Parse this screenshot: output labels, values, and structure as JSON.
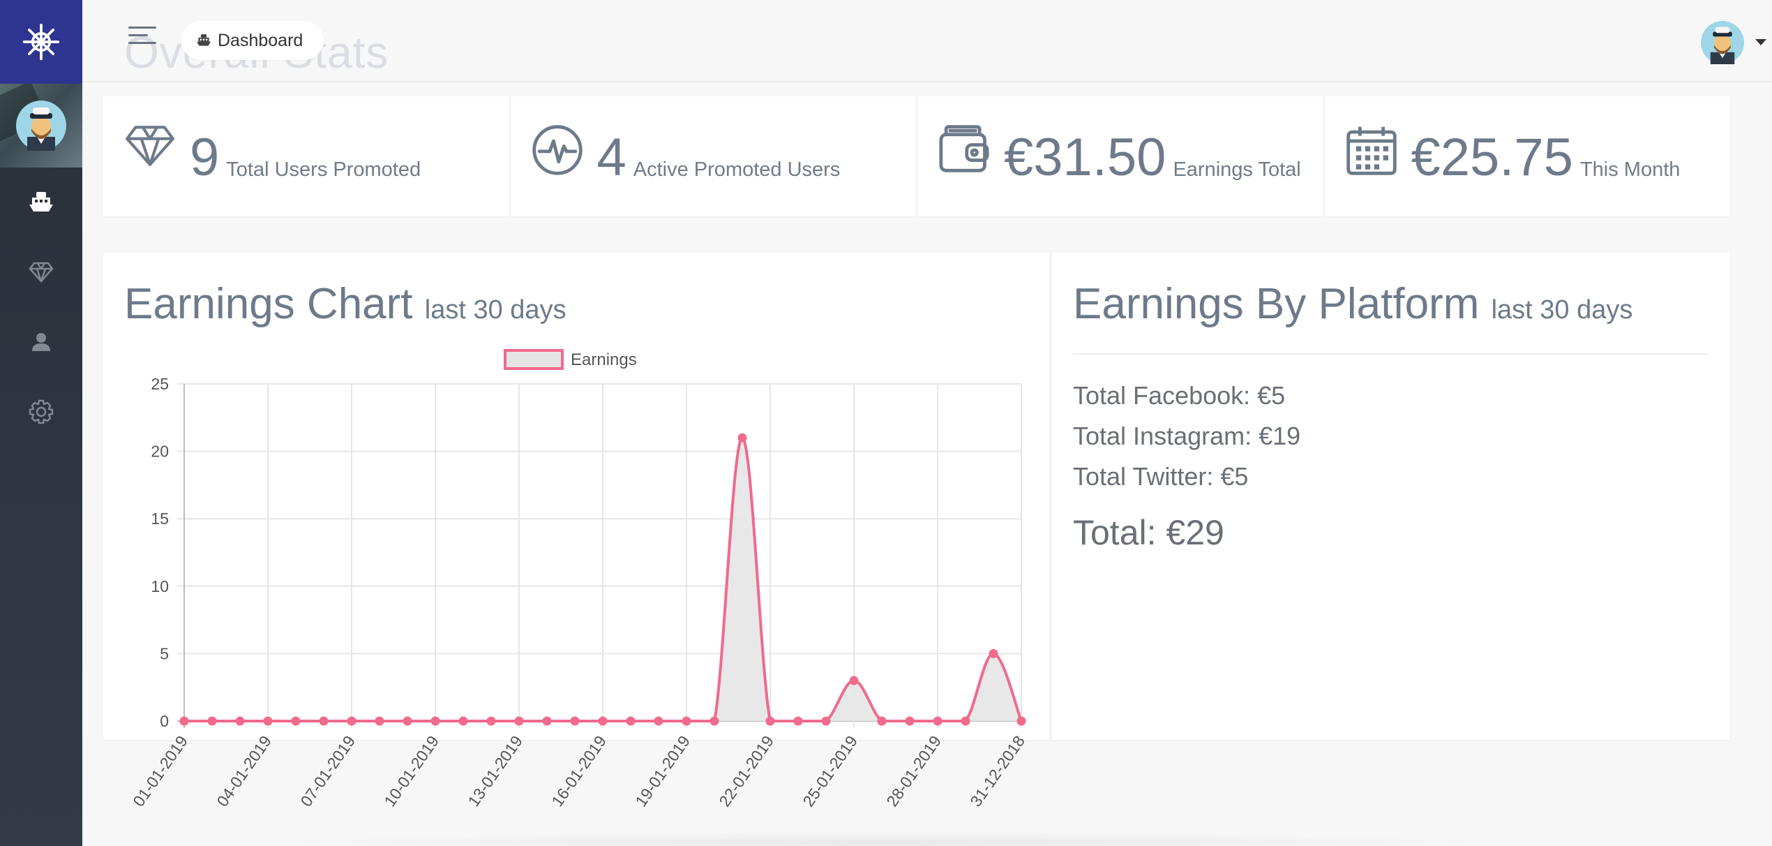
{
  "header": {
    "ghost_title": "Overall Stats",
    "breadcrumb": "Dashboard"
  },
  "sidebar": {
    "items": [
      {
        "icon": "ship-icon",
        "active": true
      },
      {
        "icon": "diamond-icon",
        "active": false
      },
      {
        "icon": "user-icon",
        "active": false
      },
      {
        "icon": "gear-icon",
        "active": false
      }
    ]
  },
  "stats": [
    {
      "icon": "diamond-icon",
      "value": "9",
      "label": "Total Users Promoted"
    },
    {
      "icon": "heartbeat-icon",
      "value": "4",
      "label": "Active Promoted Users"
    },
    {
      "icon": "wallet-icon",
      "value": "€31.50",
      "label": "Earnings Total"
    },
    {
      "icon": "calendar-icon",
      "value": "€25.75",
      "label": "This Month"
    }
  ],
  "earnings_chart": {
    "title": "Earnings Chart",
    "subtitle": "last 30 days"
  },
  "platform": {
    "title": "Earnings By Platform",
    "subtitle": "last 30 days",
    "lines": [
      "Total Facebook: €5",
      "Total Instagram: €19",
      "Total Twitter: €5"
    ],
    "total": "Total: €29"
  },
  "colors": {
    "brand": "#2e3590",
    "line": "#f06a8c",
    "fill": "#e5e5e5",
    "text": "#6d7a8a"
  },
  "chart_data": {
    "type": "area",
    "legend": "Earnings",
    "legend_position": "top",
    "grid": true,
    "ylim": [
      0,
      25
    ],
    "yticks": [
      0,
      5,
      10,
      15,
      20,
      25
    ],
    "categories": [
      "01-01-2019",
      "02-01-2019",
      "03-01-2019",
      "04-01-2019",
      "05-01-2019",
      "06-01-2019",
      "07-01-2019",
      "08-01-2019",
      "09-01-2019",
      "10-01-2019",
      "11-01-2019",
      "12-01-2019",
      "13-01-2019",
      "14-01-2019",
      "15-01-2019",
      "16-01-2019",
      "17-01-2019",
      "18-01-2019",
      "19-01-2019",
      "20-01-2019",
      "21-01-2019",
      "22-01-2019",
      "23-01-2019",
      "24-01-2019",
      "25-01-2019",
      "26-01-2019",
      "27-01-2019",
      "28-01-2019",
      "29-01-2019",
      "30-01-2019",
      "31-12-2018"
    ],
    "xtick_labels": [
      "01-01-2019",
      "04-01-2019",
      "07-01-2019",
      "10-01-2019",
      "13-01-2019",
      "16-01-2019",
      "19-01-2019",
      "22-01-2019",
      "25-01-2019",
      "28-01-2019",
      "31-12-2018"
    ],
    "series": [
      {
        "name": "Earnings",
        "values": [
          0,
          0,
          0,
          0,
          0,
          0,
          0,
          0,
          0,
          0,
          0,
          0,
          0,
          0,
          0,
          0,
          0,
          0,
          0,
          0,
          21,
          0,
          0,
          0,
          3,
          0,
          0,
          0,
          0,
          5,
          0
        ]
      }
    ]
  }
}
